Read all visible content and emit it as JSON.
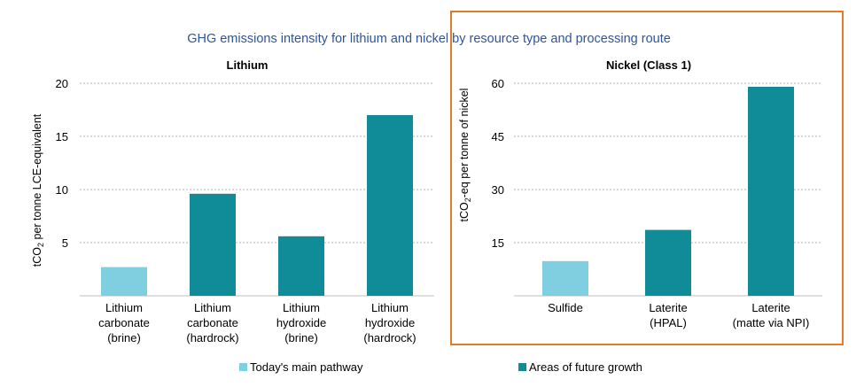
{
  "title": "GHG emissions intensity for lithium and nickel by resource type and processing route",
  "legend": [
    {
      "label": "Today's main pathway",
      "color": "#7fcfe0"
    },
    {
      "label": "Areas of future growth",
      "color": "#0f8c98"
    }
  ],
  "colors": {
    "main_pathway": "#7fcfe0",
    "future_growth": "#0f8c98",
    "title_text": "#2f5597",
    "highlight_box": "#e8792b",
    "gridline": "#b3b3b3"
  },
  "chart_data": [
    {
      "type": "bar",
      "title": "Lithium",
      "ylabel_parts": [
        "tCO",
        "2",
        " per tonne LCE-equivalent"
      ],
      "ylim": [
        0,
        20
      ],
      "yticks": [
        5,
        10,
        15,
        20
      ],
      "grid": true,
      "categories": [
        [
          "Lithium",
          "carbonate",
          "(brine)"
        ],
        [
          "Lithium",
          "carbonate",
          "(hardrock)"
        ],
        [
          "Lithium",
          "hydroxide",
          "(brine)"
        ],
        [
          "Lithium",
          "hydroxide",
          "(hardrock)"
        ]
      ],
      "values": [
        2.7,
        9.6,
        5.6,
        17.0
      ],
      "group": [
        "main",
        "future",
        "future",
        "future"
      ]
    },
    {
      "type": "bar",
      "title": "Nickel (Class 1)",
      "ylabel_parts": [
        "tCO",
        "2",
        "-eq per tonne of nickel"
      ],
      "ylim": [
        0,
        60
      ],
      "yticks": [
        15,
        30,
        45,
        60
      ],
      "grid": true,
      "categories": [
        [
          "Sulfide"
        ],
        [
          "Laterite",
          "(HPAL)"
        ],
        [
          "Laterite",
          "(matte via NPI)"
        ]
      ],
      "values": [
        9.8,
        18.6,
        59.0
      ],
      "group": [
        "main",
        "future",
        "future"
      ]
    }
  ]
}
